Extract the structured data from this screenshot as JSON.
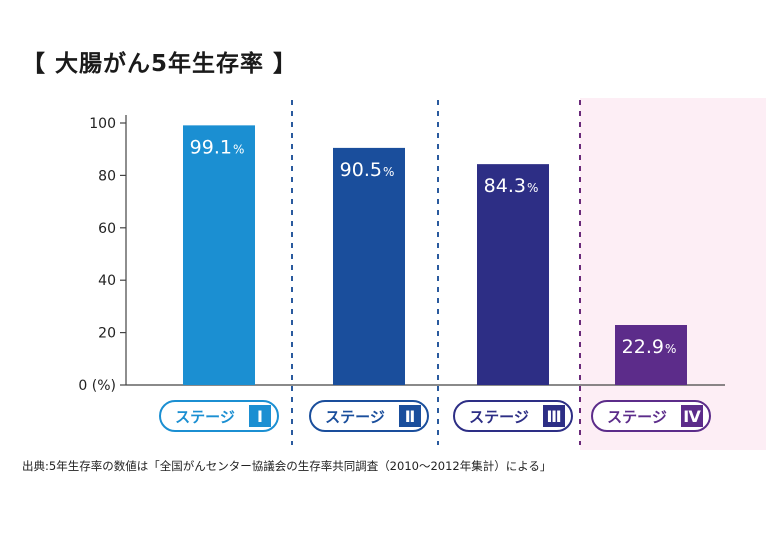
{
  "title": "【 大腸がん5年生存率 】",
  "source_note": "出典:5年生存率の数値は「全国がんセンター協議会の生存率共同調査（2010〜2012年集計）による」",
  "colors": {
    "text": "#1a1a1a",
    "axis": "#444444",
    "panel_bg": "#fdeef5",
    "divider_blue": "#2a5a9e",
    "divider_purple": "#6a2a7a"
  },
  "chart_data": {
    "type": "bar",
    "title": "",
    "xlabel": "",
    "ylabel": "",
    "ylim": [
      0,
      100
    ],
    "y_ticks": [
      {
        "value": 0,
        "label": "0 (%)"
      },
      {
        "value": 20,
        "label": "20"
      },
      {
        "value": 40,
        "label": "40"
      },
      {
        "value": 60,
        "label": "60"
      },
      {
        "value": 80,
        "label": "80"
      },
      {
        "value": 100,
        "label": "100"
      }
    ],
    "categories": [
      {
        "label": "ステージ",
        "numeral": "Ⅰ"
      },
      {
        "label": "ステージ",
        "numeral": "Ⅱ"
      },
      {
        "label": "ステージ",
        "numeral": "Ⅲ"
      },
      {
        "label": "ステージ",
        "numeral": "Ⅳ"
      }
    ],
    "values": [
      99.1,
      90.5,
      84.3,
      22.9
    ],
    "value_labels": [
      "99.1",
      "90.5",
      "84.3",
      "22.9"
    ],
    "value_unit": "%",
    "bar_colors": [
      "#1b8fd2",
      "#1a4e9c",
      "#2d2e85",
      "#5c2c8a"
    ],
    "grid": false,
    "legend": "none"
  }
}
